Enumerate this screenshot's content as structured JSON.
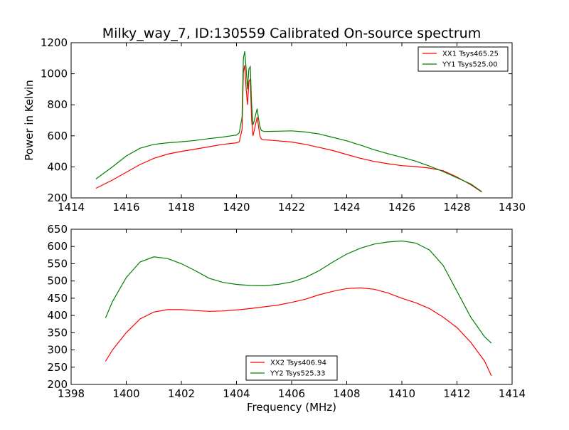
{
  "figure": {
    "title": "Milky_way_7, ID:130559 Calibrated On-source spectrum",
    "xlabel": "Frequency (MHz)"
  },
  "chart_data": [
    {
      "type": "line",
      "title": "Milky_way_7, ID:130559 Calibrated On-source spectrum",
      "xlabel": "",
      "ylabel": "Power in Kelvin",
      "xlim": [
        1414,
        1430
      ],
      "ylim": [
        200,
        1200
      ],
      "xticks": [
        1414,
        1416,
        1418,
        1420,
        1422,
        1424,
        1426,
        1428,
        1430
      ],
      "yticks": [
        200,
        400,
        600,
        800,
        1000,
        1200
      ],
      "grid": false,
      "legend": "top-right",
      "series": [
        {
          "name": "XX1 Tsys465.25",
          "color": "#ff0000",
          "x": [
            1414.9,
            1415.5,
            1416.0,
            1416.5,
            1417.0,
            1417.5,
            1418.0,
            1418.5,
            1419.0,
            1419.5,
            1420.0,
            1420.1,
            1420.2,
            1420.25,
            1420.3,
            1420.35,
            1420.4,
            1420.45,
            1420.5,
            1420.55,
            1420.6,
            1420.65,
            1420.7,
            1420.75,
            1420.8,
            1420.85,
            1420.9,
            1421.0,
            1421.5,
            1422.0,
            1422.5,
            1423.0,
            1423.5,
            1424.0,
            1424.5,
            1425.0,
            1425.5,
            1426.0,
            1426.5,
            1427.0,
            1427.5,
            1428.0,
            1428.5,
            1428.9
          ],
          "y": [
            262,
            315,
            365,
            415,
            455,
            482,
            500,
            514,
            530,
            545,
            555,
            562,
            640,
            1010,
            1055,
            900,
            800,
            950,
            965,
            700,
            600,
            640,
            680,
            720,
            660,
            600,
            580,
            575,
            568,
            560,
            545,
            525,
            505,
            480,
            455,
            435,
            420,
            408,
            402,
            392,
            375,
            335,
            285,
            238
          ]
        },
        {
          "name": "YY1 Tsys525.00",
          "color": "#008000",
          "x": [
            1414.9,
            1415.5,
            1416.0,
            1416.5,
            1417.0,
            1417.5,
            1418.0,
            1418.5,
            1419.0,
            1419.5,
            1420.0,
            1420.1,
            1420.2,
            1420.25,
            1420.3,
            1420.35,
            1420.4,
            1420.45,
            1420.5,
            1420.55,
            1420.6,
            1420.65,
            1420.7,
            1420.75,
            1420.8,
            1420.85,
            1420.9,
            1421.0,
            1421.5,
            1422.0,
            1422.5,
            1423.0,
            1423.5,
            1424.0,
            1424.5,
            1425.0,
            1425.5,
            1426.0,
            1426.5,
            1427.0,
            1427.5,
            1428.0,
            1428.5,
            1428.9
          ],
          "y": [
            322,
            400,
            470,
            520,
            545,
            555,
            562,
            570,
            582,
            592,
            605,
            620,
            720,
            1100,
            1145,
            1030,
            900,
            1030,
            1045,
            800,
            670,
            700,
            740,
            775,
            710,
            660,
            635,
            628,
            630,
            632,
            625,
            612,
            590,
            568,
            540,
            510,
            485,
            462,
            437,
            405,
            370,
            330,
            290,
            240
          ]
        }
      ]
    },
    {
      "type": "line",
      "title": "",
      "xlabel": "Frequency (MHz)",
      "ylabel": "",
      "xlim": [
        1398,
        1414
      ],
      "ylim": [
        200,
        650
      ],
      "xticks": [
        1398,
        1400,
        1402,
        1404,
        1406,
        1408,
        1410,
        1412,
        1414
      ],
      "yticks": [
        200,
        250,
        300,
        350,
        400,
        450,
        500,
        550,
        600,
        650
      ],
      "grid": false,
      "legend": "bottom-center",
      "series": [
        {
          "name": "XX2 Tsys406.94",
          "color": "#ff0000",
          "x": [
            1399.25,
            1399.5,
            1400.0,
            1400.5,
            1401.0,
            1401.5,
            1402.0,
            1402.5,
            1403.0,
            1403.5,
            1404.0,
            1404.5,
            1405.0,
            1405.5,
            1406.0,
            1406.5,
            1407.0,
            1407.5,
            1408.0,
            1408.5,
            1409.0,
            1409.5,
            1410.0,
            1410.5,
            1411.0,
            1411.5,
            1412.0,
            1412.5,
            1413.0,
            1413.25
          ],
          "y": [
            267,
            300,
            350,
            390,
            410,
            417,
            417,
            414,
            412,
            413,
            416,
            420,
            425,
            430,
            438,
            447,
            460,
            470,
            478,
            480,
            476,
            465,
            450,
            437,
            420,
            395,
            365,
            322,
            268,
            225
          ]
        },
        {
          "name": "YY2 Tsys525.33",
          "color": "#008000",
          "x": [
            1399.25,
            1399.5,
            1400.0,
            1400.5,
            1401.0,
            1401.5,
            1402.0,
            1402.5,
            1403.0,
            1403.5,
            1404.0,
            1404.5,
            1405.0,
            1405.5,
            1406.0,
            1406.5,
            1407.0,
            1407.5,
            1408.0,
            1408.5,
            1409.0,
            1409.5,
            1410.0,
            1410.5,
            1411.0,
            1411.5,
            1412.0,
            1412.5,
            1413.0,
            1413.25
          ],
          "y": [
            393,
            440,
            510,
            555,
            570,
            565,
            550,
            530,
            508,
            496,
            490,
            487,
            486,
            490,
            497,
            510,
            530,
            555,
            578,
            595,
            607,
            613,
            616,
            610,
            590,
            545,
            470,
            395,
            338,
            320
          ]
        }
      ]
    }
  ]
}
